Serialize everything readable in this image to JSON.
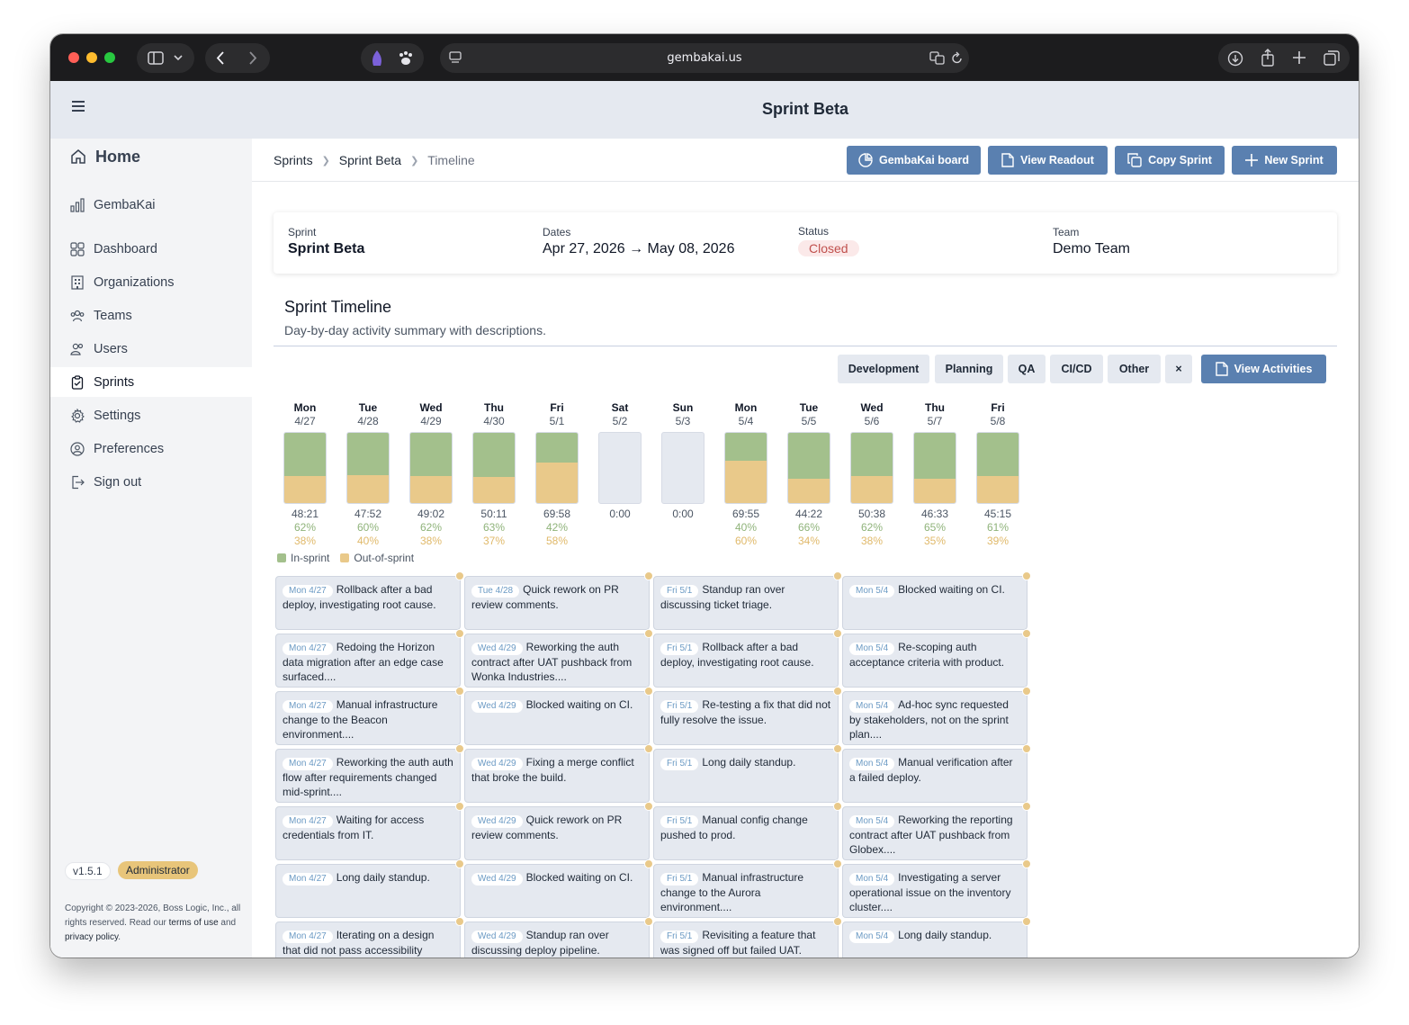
{
  "browser": {
    "url": "gembakai.us"
  },
  "page_title": "Sprint Beta",
  "sidebar": {
    "home": "Home",
    "items": [
      {
        "label": "GembaKai",
        "icon": "bar-chart-icon"
      },
      {
        "label": "Dashboard",
        "icon": "grid-icon"
      },
      {
        "label": "Organizations",
        "icon": "building-icon"
      },
      {
        "label": "Teams",
        "icon": "teams-icon"
      },
      {
        "label": "Users",
        "icon": "users-icon"
      },
      {
        "label": "Sprints",
        "icon": "clipboard-icon"
      },
      {
        "label": "Settings",
        "icon": "gear-icon"
      },
      {
        "label": "Preferences",
        "icon": "user-circle-icon"
      },
      {
        "label": "Sign out",
        "icon": "sign-out-icon"
      }
    ],
    "version": "v1.5.1",
    "role": "Administrator",
    "copyright_pre": "Copyright © 2023-2026, Boss Logic, Inc., all rights reserved. Read our ",
    "terms": "terms of use",
    "and": " and ",
    "privacy": "privacy policy",
    "period": "."
  },
  "breadcrumb": [
    "Sprints",
    "Sprint Beta",
    "Timeline"
  ],
  "actions": {
    "board": "GembaKai board",
    "readout": "View Readout",
    "copy": "Copy Sprint",
    "new": "New Sprint"
  },
  "summary": {
    "sprint_label": "Sprint",
    "sprint_value": "Sprint Beta",
    "dates_label": "Dates",
    "dates_value": "Apr 27, 2026 → May 08, 2026",
    "status_label": "Status",
    "status_value": "Closed",
    "team_label": "Team",
    "team_value": "Demo Team"
  },
  "timeline": {
    "title": "Sprint Timeline",
    "subtitle": "Day-by-day activity summary with descriptions.",
    "filters": [
      "Development",
      "Planning",
      "QA",
      "CI/CD",
      "Other",
      "×"
    ],
    "view_activities": "View Activities",
    "legend_in": "In-sprint",
    "legend_out": "Out-of-sprint",
    "colors": {
      "in": "#a3c08c",
      "out": "#e9c98a"
    }
  },
  "chart_data": {
    "type": "bar",
    "categories": [
      "Mon 4/27",
      "Tue 4/28",
      "Wed 4/29",
      "Thu 4/30",
      "Fri 5/1",
      "Sat 5/2",
      "Sun 5/3",
      "Mon 5/4",
      "Tue 5/5",
      "Wed 5/6",
      "Thu 5/7",
      "Fri 5/8"
    ],
    "days": [
      {
        "dow": "Mon",
        "date": "4/27",
        "total": "48:21",
        "in": "62%",
        "out": "38%",
        "in_frac": 0.62
      },
      {
        "dow": "Tue",
        "date": "4/28",
        "total": "47:52",
        "in": "60%",
        "out": "40%",
        "in_frac": 0.6
      },
      {
        "dow": "Wed",
        "date": "4/29",
        "total": "49:02",
        "in": "62%",
        "out": "38%",
        "in_frac": 0.62
      },
      {
        "dow": "Thu",
        "date": "4/30",
        "total": "50:11",
        "in": "63%",
        "out": "37%",
        "in_frac": 0.63
      },
      {
        "dow": "Fri",
        "date": "5/1",
        "total": "69:58",
        "in": "42%",
        "out": "58%",
        "in_frac": 0.42
      },
      {
        "dow": "Sat",
        "date": "5/2",
        "total": "0:00",
        "in": "",
        "out": "",
        "in_frac": null
      },
      {
        "dow": "Sun",
        "date": "5/3",
        "total": "0:00",
        "in": "",
        "out": "",
        "in_frac": null
      },
      {
        "dow": "Mon",
        "date": "5/4",
        "total": "69:55",
        "in": "40%",
        "out": "60%",
        "in_frac": 0.4
      },
      {
        "dow": "Tue",
        "date": "5/5",
        "total": "44:22",
        "in": "66%",
        "out": "34%",
        "in_frac": 0.66
      },
      {
        "dow": "Wed",
        "date": "5/6",
        "total": "50:38",
        "in": "62%",
        "out": "38%",
        "in_frac": 0.62
      },
      {
        "dow": "Thu",
        "date": "5/7",
        "total": "46:33",
        "in": "65%",
        "out": "35%",
        "in_frac": 0.65
      },
      {
        "dow": "Fri",
        "date": "5/8",
        "total": "45:15",
        "in": "61%",
        "out": "39%",
        "in_frac": 0.61
      }
    ],
    "series": [
      {
        "name": "In-sprint",
        "values": [
          0.62,
          0.6,
          0.62,
          0.63,
          0.42,
          0,
          0,
          0.4,
          0.66,
          0.62,
          0.65,
          0.61
        ]
      },
      {
        "name": "Out-of-sprint",
        "values": [
          0.38,
          0.4,
          0.38,
          0.37,
          0.58,
          0,
          0,
          0.6,
          0.34,
          0.38,
          0.35,
          0.39
        ]
      }
    ]
  },
  "activities": [
    [
      {
        "chip": "Mon 4/27",
        "text": "Rollback after a bad deploy, investigating root cause."
      },
      {
        "chip": "Mon 4/27",
        "text": "Redoing the Horizon data migration after an edge case surfaced...."
      },
      {
        "chip": "Mon 4/27",
        "text": "Manual infrastructure change to the Beacon environment...."
      },
      {
        "chip": "Mon 4/27",
        "text": "Reworking the auth auth flow after requirements changed mid-sprint...."
      },
      {
        "chip": "Mon 4/27",
        "text": "Waiting for access credentials from IT."
      },
      {
        "chip": "Mon 4/27",
        "text": "Long daily standup."
      },
      {
        "chip": "Mon 4/27",
        "text": "Iterating on a design that did not pass accessibility review...."
      }
    ],
    [
      {
        "chip": "Tue 4/28",
        "text": "Quick rework on PR review comments."
      },
      {
        "chip": "Wed 4/29",
        "text": "Reworking the auth contract after UAT pushback from Wonka Industries...."
      },
      {
        "chip": "Wed 4/29",
        "text": "Blocked waiting on CI."
      },
      {
        "chip": "Wed 4/29",
        "text": "Fixing a merge conflict that broke the build."
      },
      {
        "chip": "Wed 4/29",
        "text": "Quick rework on PR review comments."
      },
      {
        "chip": "Wed 4/29",
        "text": "Blocked waiting on CI."
      },
      {
        "chip": "Wed 4/29",
        "text": "Standup ran over discussing deploy pipeline."
      }
    ],
    [
      {
        "chip": "Fri 5/1",
        "text": "Standup ran over discussing ticket triage."
      },
      {
        "chip": "Fri 5/1",
        "text": "Rollback after a bad deploy, investigating root cause."
      },
      {
        "chip": "Fri 5/1",
        "text": "Re-testing a fix that did not fully resolve the issue."
      },
      {
        "chip": "Fri 5/1",
        "text": "Long daily standup."
      },
      {
        "chip": "Fri 5/1",
        "text": "Manual config change pushed to prod."
      },
      {
        "chip": "Fri 5/1",
        "text": "Manual infrastructure change to the Aurora environment...."
      },
      {
        "chip": "Fri 5/1",
        "text": "Revisiting a feature that was signed off but failed UAT."
      }
    ],
    [
      {
        "chip": "Mon 5/4",
        "text": "Blocked waiting on CI."
      },
      {
        "chip": "Mon 5/4",
        "text": "Re-scoping auth acceptance criteria with product."
      },
      {
        "chip": "Mon 5/4",
        "text": "Ad-hoc sync requested by stakeholders, not on the sprint plan...."
      },
      {
        "chip": "Mon 5/4",
        "text": "Manual verification after a failed deploy."
      },
      {
        "chip": "Mon 5/4",
        "text": "Reworking the reporting contract after UAT pushback from Globex...."
      },
      {
        "chip": "Mon 5/4",
        "text": "Investigating a server operational issue on the inventory cluster...."
      },
      {
        "chip": "Mon 5/4",
        "text": "Long daily standup."
      }
    ]
  ]
}
